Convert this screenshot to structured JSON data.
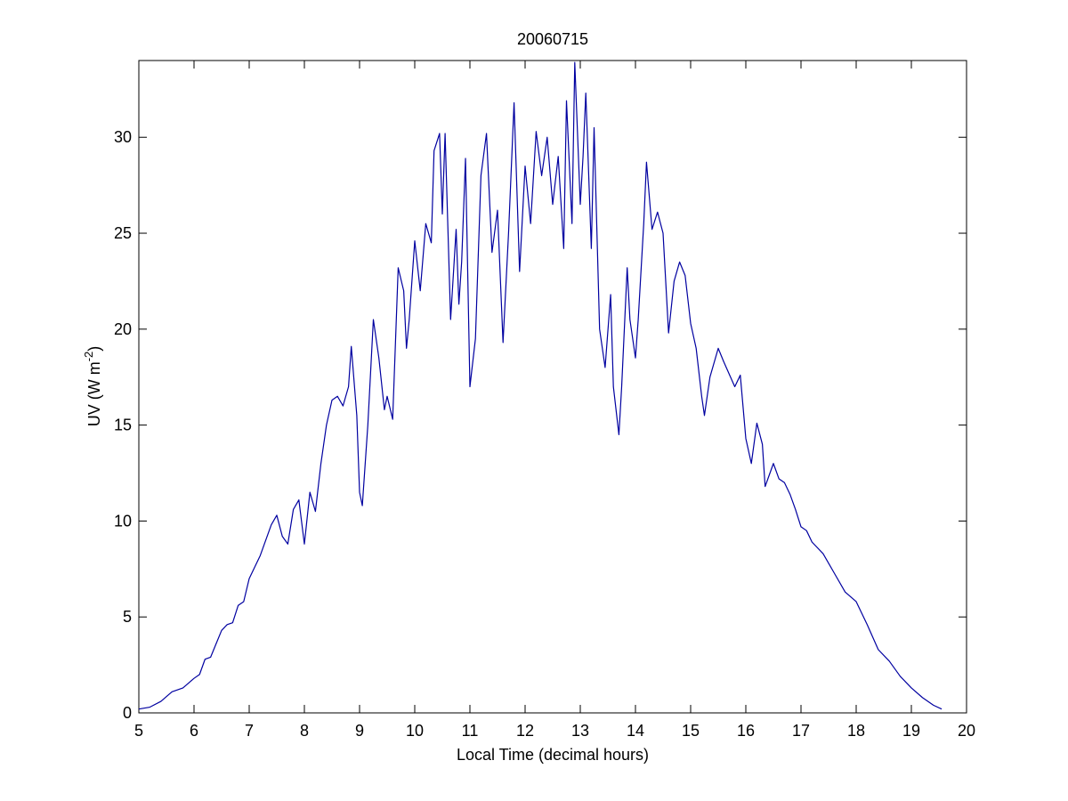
{
  "chart_data": {
    "type": "line",
    "title": "20060715",
    "x_label": "Local Time (decimal hours)",
    "y_label": {
      "text": "UV (W m",
      "superscript": "-2",
      "suffix": ")"
    },
    "xlim": [
      5,
      20
    ],
    "xticks": [
      5,
      6,
      7,
      8,
      9,
      10,
      11,
      12,
      13,
      14,
      15,
      16,
      17,
      18,
      19,
      20
    ],
    "ylim": [
      0,
      34
    ],
    "yticks": [
      0,
      5,
      10,
      15,
      20,
      25,
      30
    ],
    "grid": false,
    "series": [
      {
        "color": "#0000a0",
        "x": [
          5.0,
          5.2,
          5.4,
          5.6,
          5.8,
          6.0,
          6.1,
          6.2,
          6.3,
          6.4,
          6.5,
          6.6,
          6.7,
          6.8,
          6.9,
          7.0,
          7.2,
          7.4,
          7.5,
          7.6,
          7.7,
          7.8,
          7.9,
          8.0,
          8.1,
          8.2,
          8.3,
          8.4,
          8.5,
          8.6,
          8.7,
          8.8,
          8.85,
          8.95,
          9.0,
          9.05,
          9.15,
          9.25,
          9.35,
          9.45,
          9.5,
          9.6,
          9.7,
          9.8,
          9.85,
          9.9,
          10.0,
          10.1,
          10.2,
          10.3,
          10.35,
          10.45,
          10.5,
          10.55,
          10.65,
          10.75,
          10.8,
          10.85,
          10.92,
          11.0,
          11.1,
          11.2,
          11.3,
          11.4,
          11.5,
          11.6,
          11.7,
          11.8,
          11.9,
          12.0,
          12.1,
          12.2,
          12.3,
          12.4,
          12.5,
          12.6,
          12.7,
          12.75,
          12.85,
          12.9,
          13.0,
          13.05,
          13.1,
          13.2,
          13.25,
          13.35,
          13.45,
          13.55,
          13.6,
          13.7,
          13.75,
          13.85,
          13.9,
          14.0,
          14.05,
          14.15,
          14.2,
          14.3,
          14.4,
          14.5,
          14.6,
          14.7,
          14.8,
          14.9,
          15.0,
          15.1,
          15.2,
          15.25,
          15.35,
          15.5,
          15.6,
          15.8,
          15.9,
          16.0,
          16.1,
          16.2,
          16.3,
          16.35,
          16.5,
          16.6,
          16.7,
          16.8,
          16.9,
          17.0,
          17.1,
          17.2,
          17.4,
          17.6,
          17.8,
          18.0,
          18.2,
          18.4,
          18.6,
          18.8,
          19.0,
          19.2,
          19.4,
          19.55
        ],
        "values": [
          0.2,
          0.3,
          0.6,
          1.1,
          1.3,
          1.8,
          2.0,
          2.8,
          2.9,
          3.6,
          4.3,
          4.6,
          4.7,
          5.6,
          5.8,
          7.0,
          8.2,
          9.8,
          10.3,
          9.2,
          8.8,
          10.6,
          11.1,
          8.8,
          11.5,
          10.5,
          13.0,
          15.0,
          16.3,
          16.5,
          16.0,
          17.0,
          19.1,
          15.5,
          11.5,
          10.8,
          15.0,
          20.5,
          18.5,
          15.8,
          16.5,
          15.3,
          23.2,
          22.0,
          19.0,
          20.5,
          24.6,
          22.0,
          25.5,
          24.5,
          29.3,
          30.2,
          26.0,
          30.2,
          20.5,
          25.2,
          21.3,
          23.5,
          28.9,
          17.0,
          19.5,
          28.0,
          30.2,
          24.0,
          26.2,
          19.3,
          25.0,
          31.8,
          23.0,
          28.5,
          25.5,
          30.3,
          28.0,
          30.0,
          26.5,
          29.0,
          24.2,
          31.9,
          25.5,
          33.9,
          26.5,
          29.0,
          32.3,
          24.2,
          30.5,
          20.0,
          18.0,
          21.8,
          17.0,
          14.5,
          17.0,
          23.2,
          20.5,
          18.5,
          20.5,
          25.5,
          28.7,
          25.2,
          26.1,
          25.0,
          19.8,
          22.5,
          23.5,
          22.8,
          20.3,
          19.0,
          16.5,
          15.5,
          17.5,
          19.0,
          18.3,
          17.0,
          17.6,
          14.3,
          13.0,
          15.1,
          14.0,
          11.8,
          13.0,
          12.2,
          12.0,
          11.4,
          10.6,
          9.7,
          9.5,
          8.9,
          8.3,
          7.3,
          6.3,
          5.8,
          4.6,
          3.3,
          2.7,
          1.9,
          1.3,
          0.8,
          0.4,
          0.2
        ]
      }
    ]
  }
}
